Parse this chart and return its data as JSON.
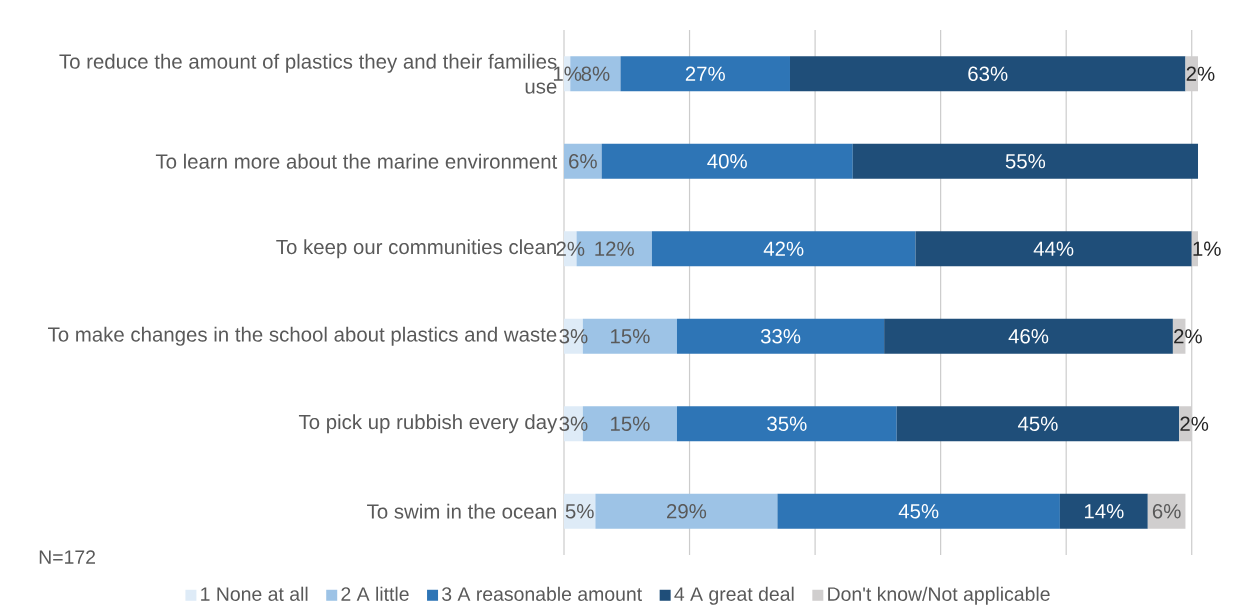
{
  "chart_data": {
    "type": "bar",
    "orientation": "horizontal",
    "stacked": true,
    "categories": [
      "To reduce the amount of plastics they and their families use",
      "To learn more about the marine environment",
      "To keep our communities clean",
      "To make changes in the school about plastics and waste",
      "To pick up rubbish every day",
      "To swim in the ocean"
    ],
    "series": [
      {
        "name": "1 None at all",
        "color": "#deebf7",
        "values": [
          1,
          null,
          2,
          3,
          3,
          5
        ],
        "value_labels": [
          "1%",
          null,
          "2%",
          "3%",
          "3%",
          "5%"
        ]
      },
      {
        "name": "2 A little",
        "color": "#9dc3e6",
        "values": [
          8,
          6,
          12,
          15,
          15,
          29
        ],
        "value_labels": [
          "8%",
          "6%",
          "12%",
          "15%",
          "15%",
          "29%"
        ]
      },
      {
        "name": "3 A reasonable amount",
        "color": "#2e75b6",
        "values": [
          27,
          40,
          42,
          33,
          35,
          45
        ],
        "value_labels": [
          "27%",
          "40%",
          "42%",
          "33%",
          "35%",
          "45%"
        ]
      },
      {
        "name": "4 A great deal",
        "color": "#1f4e79",
        "values": [
          63,
          55,
          44,
          46,
          45,
          14
        ],
        "value_labels": [
          "63%",
          "55%",
          "44%",
          "46%",
          "45%",
          "14%"
        ]
      },
      {
        "name": "Don't know/Not applicable",
        "color": "#d0cece",
        "values": [
          2,
          null,
          1,
          2,
          2,
          6
        ],
        "value_labels": [
          "2%",
          null,
          "1%",
          "2%",
          "2%",
          "6%"
        ]
      }
    ],
    "xlim": [
      0,
      101
    ],
    "xticks": [
      {
        "value": 0,
        "label": null
      },
      {
        "value": 20,
        "label": null
      },
      {
        "value": 40,
        "label": null
      },
      {
        "value": 60,
        "label": null
      },
      {
        "value": 80,
        "label": null
      },
      {
        "value": 100,
        "label": null
      }
    ],
    "grid": "x",
    "tick_labels": "y",
    "legend": "bottom",
    "annotations": [
      "N=172"
    ]
  }
}
